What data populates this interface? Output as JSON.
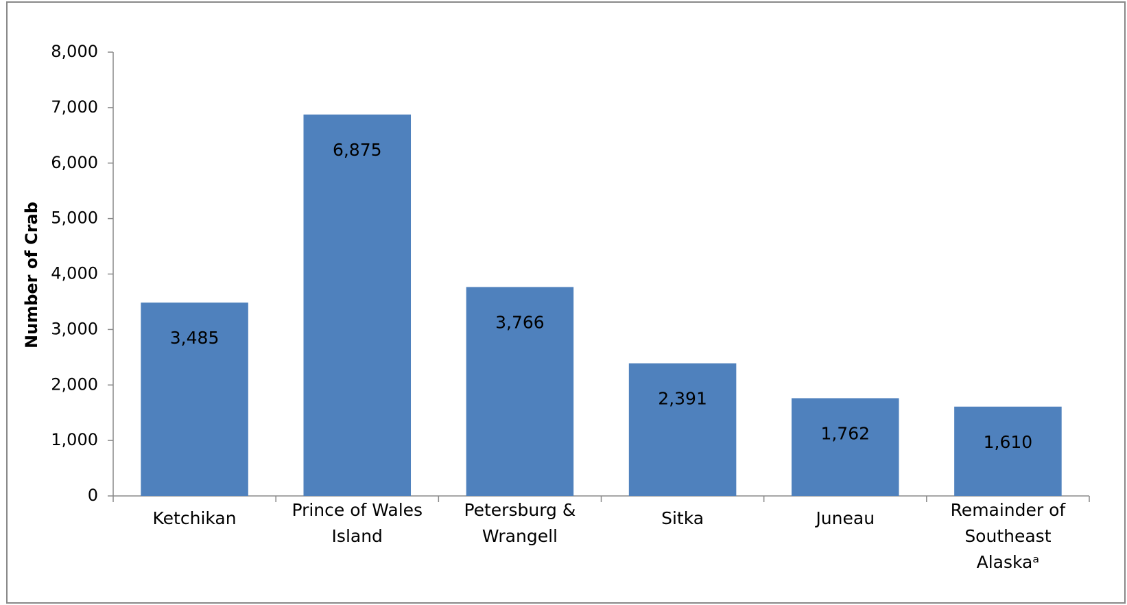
{
  "chart_data": {
    "type": "bar",
    "y_label": "Number of Crab",
    "categories": [
      "Ketchikan",
      "Prince of Wales Island",
      "Petersburg & Wrangell",
      "Sitka",
      "Juneau",
      "Remainder of Southeast Alaskaᵃ"
    ],
    "values": [
      3485,
      6875,
      3766,
      2391,
      1762,
      1610
    ],
    "value_labels": [
      "3,485",
      "6,875",
      "3,766",
      "2,391",
      "1,762",
      "1,610"
    ],
    "color": "#4f81bd",
    "ylim": [
      0,
      8000
    ],
    "yticks": [
      0,
      {
        "value": 1000,
        "label": "1,000"
      },
      {
        "value": 2000,
        "label": "2,000"
      },
      {
        "value": 3000,
        "label": "3,000"
      },
      {
        "value": 4000,
        "label": "4,000"
      },
      {
        "value": 5000,
        "label": "5,000"
      },
      {
        "value": 6000,
        "label": "6,000"
      },
      {
        "value": 7000,
        "label": "7,000"
      },
      {
        "value": 8000,
        "label": "8,000"
      }
    ],
    "grid": false
  }
}
